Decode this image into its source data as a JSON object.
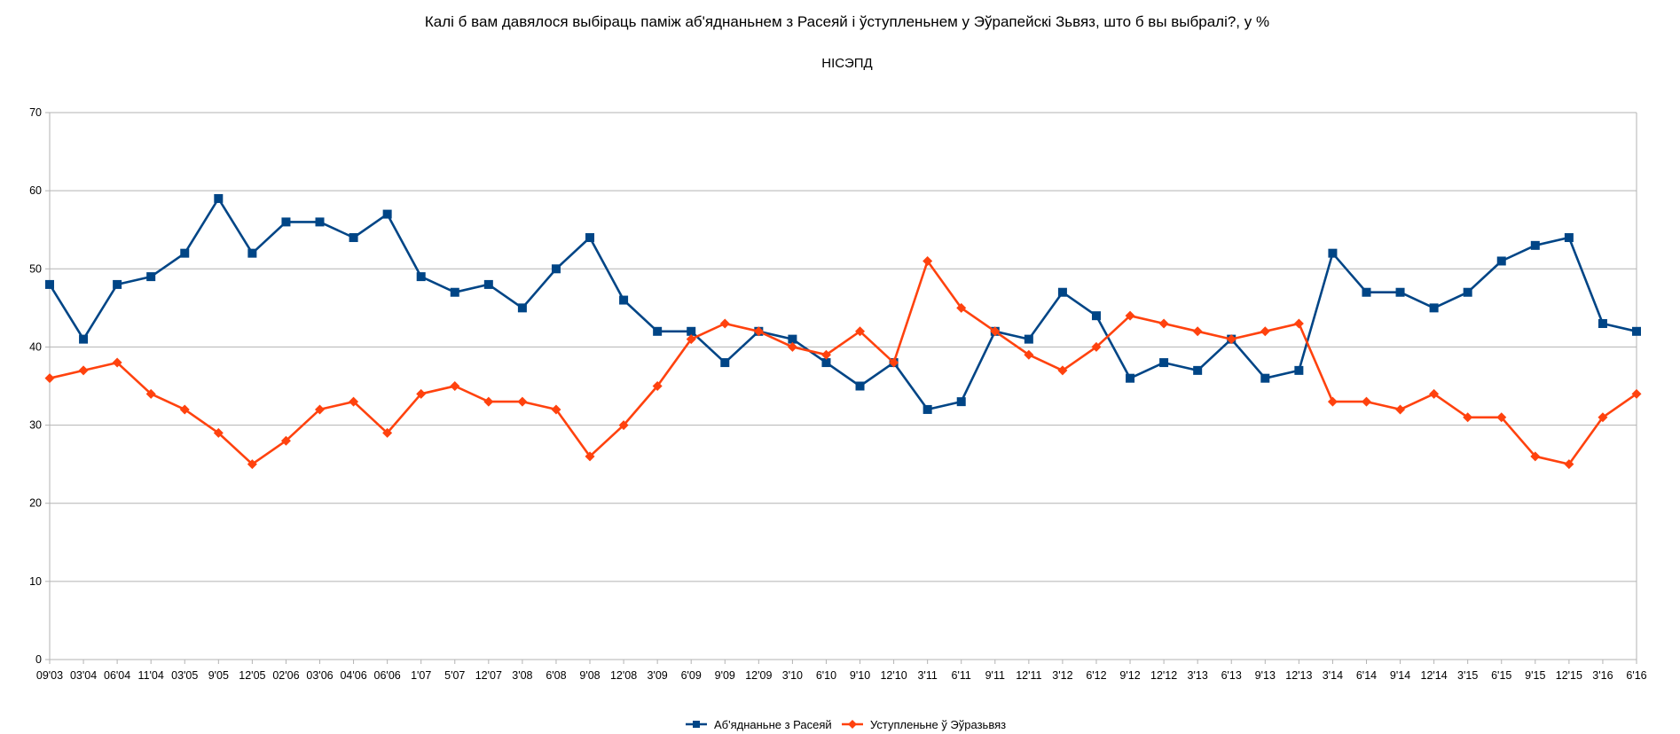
{
  "chart_data": {
    "type": "line",
    "title": "Калі б вам давялося выбіраць паміж аб'яднаньнем з Расеяй і ўступленьнем у Эўрапейскі Зьвяз, што б вы выбралі?, у %",
    "subtitle": "НІСЭПД",
    "xlabel": "",
    "ylabel": "",
    "ylim": [
      0,
      70
    ],
    "yticks": [
      0,
      10,
      20,
      30,
      40,
      50,
      60,
      70
    ],
    "grid": true,
    "legend_position": "bottom-center",
    "categories": [
      "09'03",
      "03'04",
      "06'04",
      "11'04",
      "03'05",
      "9'05",
      "12'05",
      "02'06",
      "03'06",
      "04'06",
      "06'06",
      "1'07",
      "5'07",
      "12'07",
      "3'08",
      "6'08",
      "9'08",
      "12'08",
      "3'09",
      "6'09",
      "9'09",
      "12'09",
      "3'10",
      "6'10",
      "9'10",
      "12'10",
      "3'11",
      "6'11",
      "9'11",
      "12'11",
      "3'12",
      "6'12",
      "9'12",
      "12'12",
      "3'13",
      "6'13",
      "9'13",
      "12'13",
      "3'14",
      "6'14",
      "9'14",
      "12'14",
      "3'15",
      "6'15",
      "9'15",
      "12'15",
      "3'16",
      "6'16"
    ],
    "series": [
      {
        "name": "Аб'яднаньне з Расеяй",
        "color": "#004586",
        "marker": "square",
        "values": [
          48,
          41,
          48,
          49,
          52,
          59,
          52,
          56,
          56,
          54,
          57,
          49,
          47,
          48,
          45,
          50,
          54,
          46,
          42,
          42,
          38,
          42,
          41,
          38,
          35,
          38,
          32,
          33,
          42,
          41,
          47,
          44,
          36,
          38,
          37,
          41,
          36,
          37,
          52,
          47,
          47,
          45,
          47,
          51,
          53,
          54,
          43,
          42
        ]
      },
      {
        "name": "Уступленьне ў Эўразьвяз",
        "color": "#ff420e",
        "marker": "diamond",
        "values": [
          36,
          37,
          38,
          34,
          32,
          29,
          25,
          28,
          32,
          33,
          29,
          34,
          35,
          33,
          33,
          32,
          26,
          30,
          35,
          41,
          43,
          42,
          40,
          39,
          42,
          38,
          51,
          45,
          42,
          39,
          37,
          40,
          44,
          43,
          42,
          41,
          42,
          43,
          33,
          33,
          32,
          34,
          31,
          31,
          26,
          25,
          31,
          34
        ]
      }
    ]
  }
}
